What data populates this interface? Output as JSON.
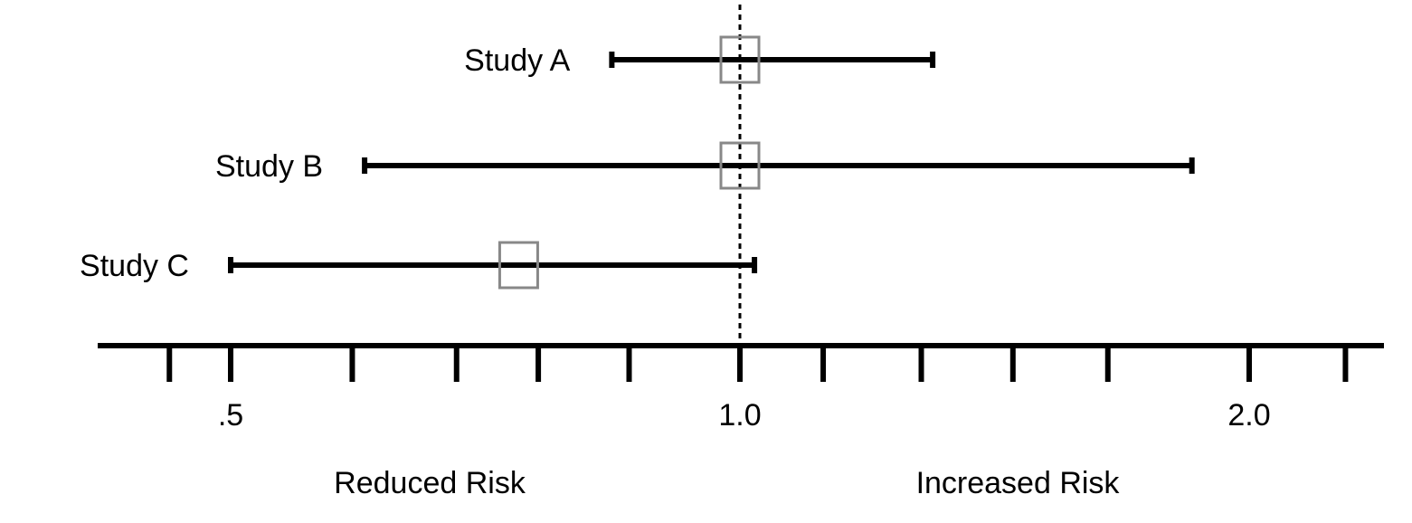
{
  "chart_data": {
    "type": "scatter",
    "subtype": "forest-plot",
    "scale": "log",
    "xlim": [
      0.45,
      2.5
    ],
    "reference_line": {
      "x": 1.0,
      "style": "dashed"
    },
    "studies": [
      {
        "name": "Study A",
        "estimate": 1.0,
        "lower": 0.84,
        "upper": 1.3
      },
      {
        "name": "Study B",
        "estimate": 1.0,
        "lower": 0.6,
        "upper": 1.85
      },
      {
        "name": "Study C",
        "estimate": 0.74,
        "lower": 0.5,
        "upper": 1.02
      }
    ],
    "x_ticks": [
      0.46,
      0.5,
      0.59,
      0.68,
      0.76,
      0.86,
      1.0,
      1.12,
      1.28,
      1.45,
      1.65,
      2.0,
      2.28
    ],
    "x_tick_labels": [
      {
        "value": 0.5,
        "text": ".5"
      },
      {
        "value": 1.0,
        "text": "1.0"
      },
      {
        "value": 2.0,
        "text": "2.0"
      }
    ],
    "region_labels": {
      "left": "Reduced Risk",
      "right": "Increased Risk"
    },
    "colors": {
      "line": "#000000",
      "marker": "#888888"
    },
    "grid": false
  }
}
